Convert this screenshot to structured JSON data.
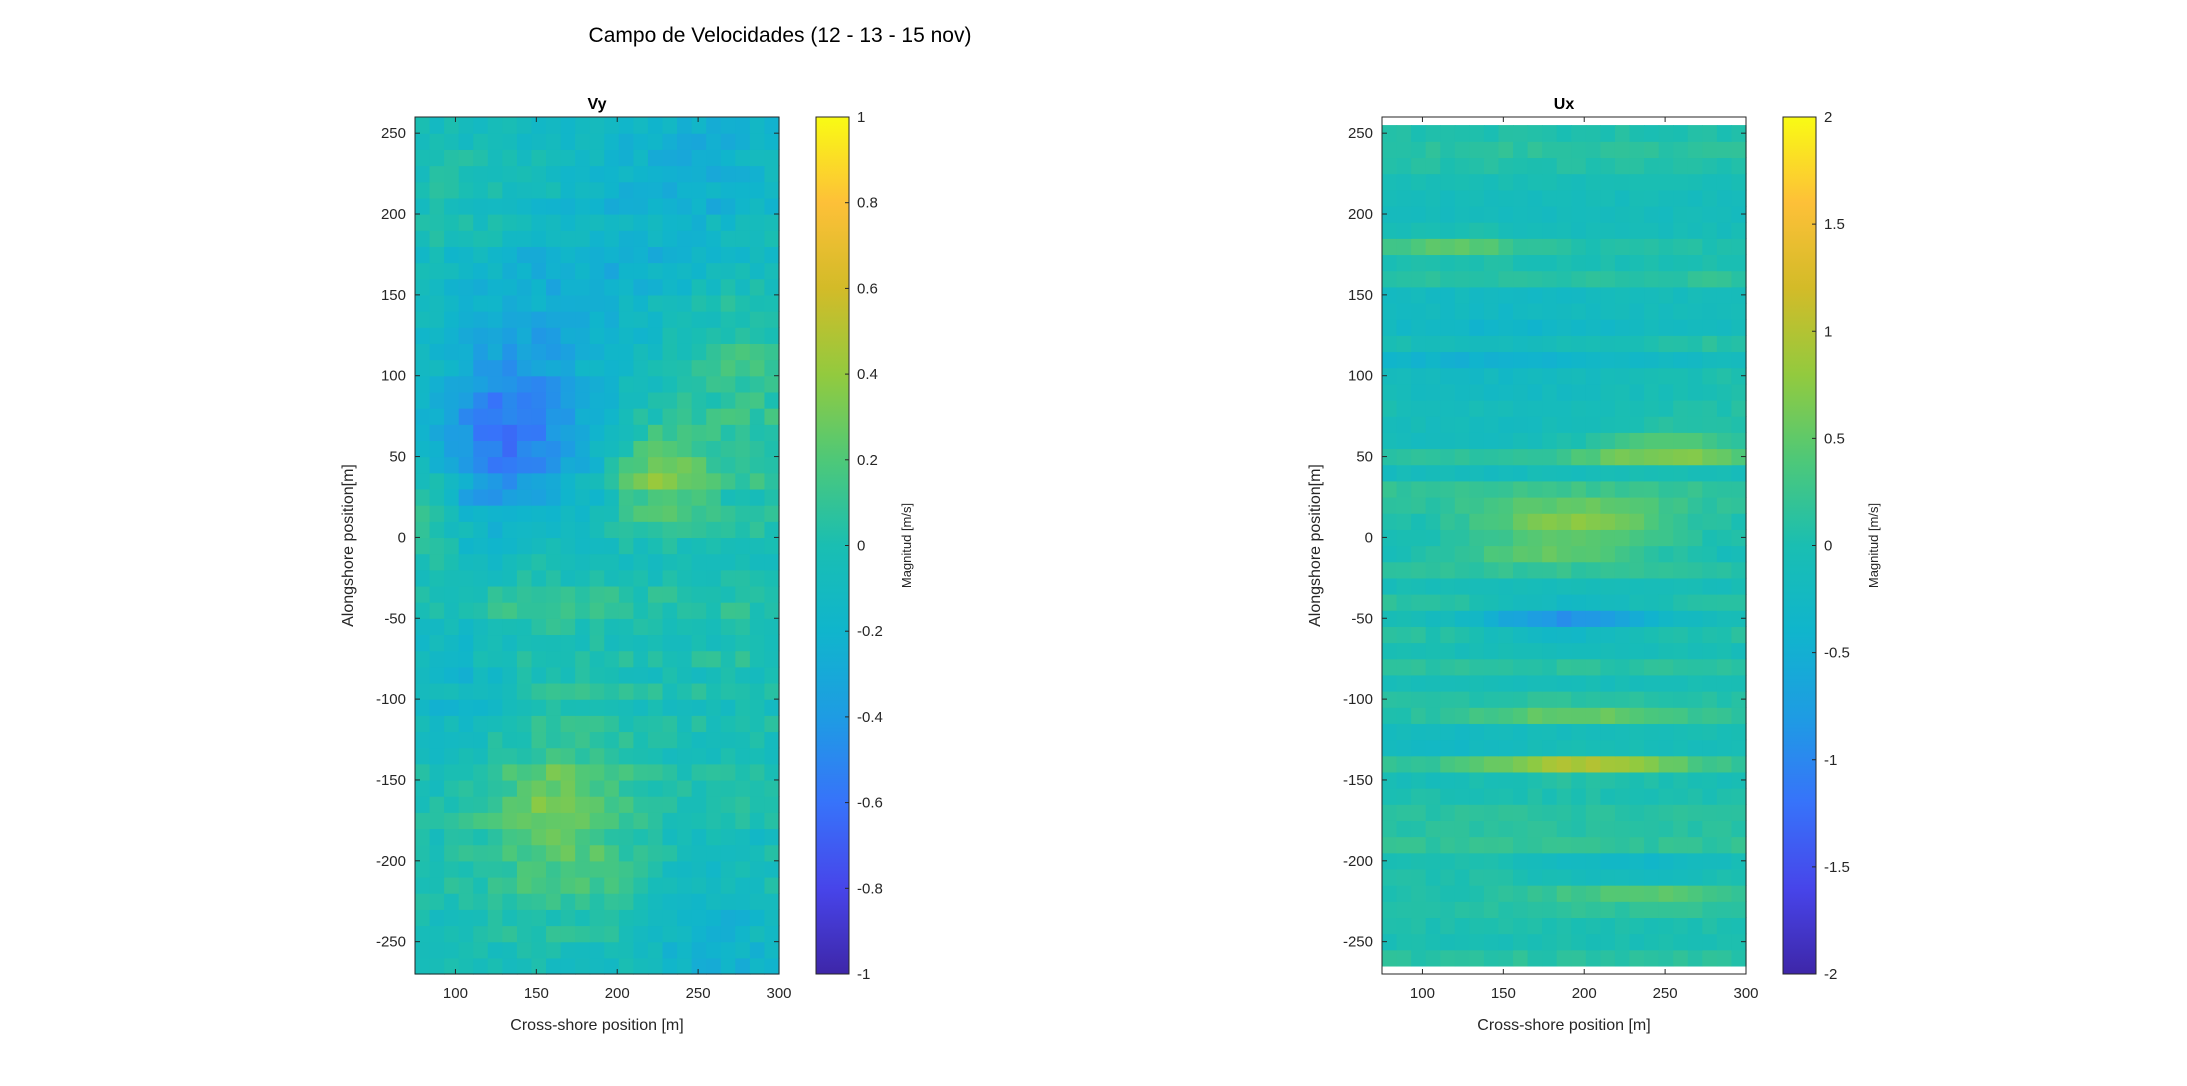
{
  "figure": {
    "suptitle": "Campo de Velocidades (12 - 13 - 15 nov)"
  },
  "chart_data": [
    {
      "type": "heatmap",
      "title": "Vy",
      "xlabel": "Cross-shore position [m]",
      "ylabel": "Alongshore position[m]",
      "xlim": [
        75,
        300
      ],
      "ylim": [
        -270,
        260
      ],
      "x_ticks": [
        100,
        150,
        200,
        250,
        300
      ],
      "y_ticks": [
        -250,
        -200,
        -150,
        -100,
        -50,
        0,
        50,
        100,
        150,
        200,
        250
      ],
      "grid": false,
      "colormap": "parula",
      "colorbar": {
        "label": "Magnitud [m/s]",
        "clim": [
          -1,
          1
        ],
        "ticks": [
          -1,
          -0.8,
          -0.6,
          -0.4,
          -0.2,
          0,
          0.2,
          0.4,
          0.6,
          0.8,
          1
        ]
      },
      "cell_size_m": [
        9,
        10
      ],
      "field_description": "mostly -0.3 to 0.3 m/s; negative core near x 100-175, y 25-100; positive patch near x 150-200, y -150 to -200 and x 210-240, y 20-50",
      "field_features": [
        {
          "x": 130,
          "y": 60,
          "value": -0.5,
          "spread_x": 35,
          "spread_y": 45
        },
        {
          "x": 175,
          "y": 130,
          "value": -0.2,
          "spread_x": 60,
          "spread_y": 60
        },
        {
          "x": 250,
          "y": 220,
          "value": -0.25,
          "spread_x": 50,
          "spread_y": 40
        },
        {
          "x": 225,
          "y": 40,
          "value": 0.35,
          "spread_x": 20,
          "spread_y": 20
        },
        {
          "x": 165,
          "y": -170,
          "value": 0.3,
          "spread_x": 30,
          "spread_y": 35
        },
        {
          "x": 140,
          "y": -30,
          "value": 0.15,
          "spread_x": 30,
          "spread_y": 30
        },
        {
          "x": 270,
          "y": 100,
          "value": 0.15,
          "spread_x": 40,
          "spread_y": 60
        },
        {
          "x": 260,
          "y": -250,
          "value": -0.2,
          "spread_x": 30,
          "spread_y": 40
        },
        {
          "x": 100,
          "y": -80,
          "value": -0.15,
          "spread_x": 25,
          "spread_y": 40
        },
        {
          "x": 85,
          "y": 10,
          "value": 0.2,
          "spread_x": 12,
          "spread_y": 30
        }
      ]
    },
    {
      "type": "heatmap",
      "title": "Ux",
      "xlabel": "Cross-shore position [m]",
      "ylabel": "Alongshore position[m]",
      "xlim": [
        75,
        300
      ],
      "ylim": [
        -270,
        260
      ],
      "x_ticks": [
        100,
        150,
        200,
        250,
        300
      ],
      "y_ticks": [
        -250,
        -200,
        -150,
        -100,
        -50,
        0,
        50,
        100,
        150,
        200,
        250
      ],
      "grid": false,
      "colormap": "parula",
      "colorbar": {
        "label": "Magnitud [m/s]",
        "clim": [
          -2,
          2
        ],
        "ticks": [
          -2,
          -1.5,
          -1,
          -0.5,
          0,
          0.5,
          1,
          1.5,
          2
        ]
      },
      "data_ylim": [
        -265,
        255
      ],
      "cell_size_m": [
        9,
        10
      ],
      "field_description": "horizontally banded field; mostly -0.3 to 0.4 m/s; strong positive bands near y 0-20, y 45-65 and y -140; negative band near y -50",
      "field_features": [
        {
          "x": 195,
          "y": 10,
          "value": 0.75,
          "spread_x": 45,
          "spread_y": 10
        },
        {
          "x": 250,
          "y": 55,
          "value": 0.7,
          "spread_x": 40,
          "spread_y": 8
        },
        {
          "x": 200,
          "y": -140,
          "value": 0.85,
          "spread_x": 45,
          "spread_y": 6
        },
        {
          "x": 190,
          "y": -50,
          "value": -0.85,
          "spread_x": 40,
          "spread_y": 8
        },
        {
          "x": 150,
          "y": 110,
          "value": -0.3,
          "spread_x": 60,
          "spread_y": 30
        },
        {
          "x": 230,
          "y": -205,
          "value": -0.5,
          "spread_x": 40,
          "spread_y": 5
        },
        {
          "x": 120,
          "y": 180,
          "value": 0.45,
          "spread_x": 30,
          "spread_y": 6
        },
        {
          "x": 180,
          "y": -10,
          "value": 0.55,
          "spread_x": 50,
          "spread_y": 5
        },
        {
          "x": 200,
          "y": -110,
          "value": 0.5,
          "spread_x": 50,
          "spread_y": 5
        },
        {
          "x": 240,
          "y": -220,
          "value": 0.4,
          "spread_x": 50,
          "spread_y": 5
        },
        {
          "x": 150,
          "y": -125,
          "value": -0.4,
          "spread_x": 80,
          "spread_y": 5
        }
      ]
    }
  ]
}
